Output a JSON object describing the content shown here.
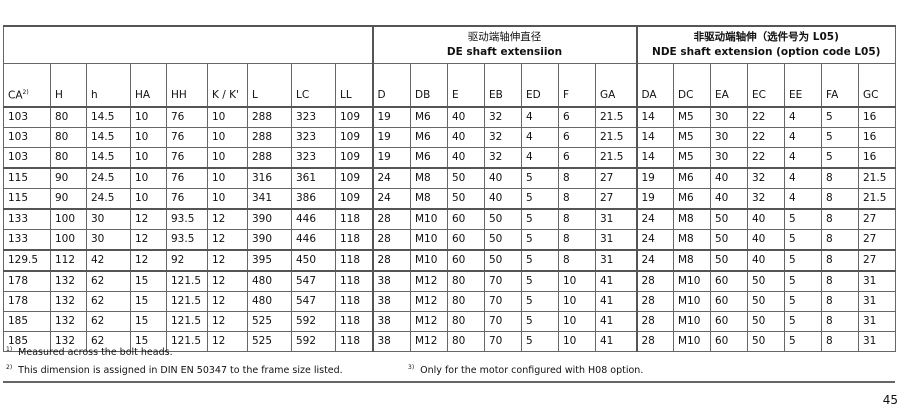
{
  "group_headers": {
    "de_zh": "驱动端轴伸直径",
    "de_en": "DE shaft extensiion",
    "nde_zh": "非驱动端轴伸（选件号为 L05)",
    "nde_en": "NDE shaft extension  (option code L05)"
  },
  "columns": [
    "CA",
    "H",
    "h",
    "HA",
    "HH",
    "K / K'",
    "L",
    "LC",
    "LL",
    "D",
    "DB",
    "E",
    "EB",
    "ED",
    "F",
    "GA",
    "DA",
    "DC",
    "EA",
    "EC",
    "EE",
    "FA",
    "GC"
  ],
  "ca_superscript": "2)",
  "row_groups": [
    [
      [
        "103",
        "80",
        "14.5",
        "10",
        "76",
        "10",
        "288",
        "323",
        "109",
        "19",
        "M6",
        "40",
        "32",
        "4",
        "6",
        "21.5",
        "14",
        "M5",
        "30",
        "22",
        "4",
        "5",
        "16"
      ],
      [
        "103",
        "80",
        "14.5",
        "10",
        "76",
        "10",
        "288",
        "323",
        "109",
        "19",
        "M6",
        "40",
        "32",
        "4",
        "6",
        "21.5",
        "14",
        "M5",
        "30",
        "22",
        "4",
        "5",
        "16"
      ],
      [
        "103",
        "80",
        "14.5",
        "10",
        "76",
        "10",
        "288",
        "323",
        "109",
        "19",
        "M6",
        "40",
        "32",
        "4",
        "6",
        "21.5",
        "14",
        "M5",
        "30",
        "22",
        "4",
        "5",
        "16"
      ]
    ],
    [
      [
        "115",
        "90",
        "24.5",
        "10",
        "76",
        "10",
        "316",
        "361",
        "109",
        "24",
        "M8",
        "50",
        "40",
        "5",
        "8",
        "27",
        "19",
        "M6",
        "40",
        "32",
        "4",
        "8",
        "21.5"
      ],
      [
        "115",
        "90",
        "24.5",
        "10",
        "76",
        "10",
        "341",
        "386",
        "109",
        "24",
        "M8",
        "50",
        "40",
        "5",
        "8",
        "27",
        "19",
        "M6",
        "40",
        "32",
        "4",
        "8",
        "21.5"
      ]
    ],
    [
      [
        "133",
        "100",
        "30",
        "12",
        "93.5",
        "12",
        "390",
        "446",
        "118",
        "28",
        "M10",
        "60",
        "50",
        "5",
        "8",
        "31",
        "24",
        "M8",
        "50",
        "40",
        "5",
        "8",
        "27"
      ],
      [
        "133",
        "100",
        "30",
        "12",
        "93.5",
        "12",
        "390",
        "446",
        "118",
        "28",
        "M10",
        "60",
        "50",
        "5",
        "8",
        "31",
        "24",
        "M8",
        "50",
        "40",
        "5",
        "8",
        "27"
      ]
    ],
    [
      [
        "129.5",
        "112",
        "42",
        "12",
        "92",
        "12",
        "395",
        "450",
        "118",
        "28",
        "M10",
        "60",
        "50",
        "5",
        "8",
        "31",
        "24",
        "M8",
        "50",
        "40",
        "5",
        "8",
        "27"
      ]
    ],
    [
      [
        "178",
        "132",
        "62",
        "15",
        "121.5",
        "12",
        "480",
        "547",
        "118",
        "38",
        "M12",
        "80",
        "70",
        "5",
        "10",
        "41",
        "28",
        "M10",
        "60",
        "50",
        "5",
        "8",
        "31"
      ],
      [
        "178",
        "132",
        "62",
        "15",
        "121.5",
        "12",
        "480",
        "547",
        "118",
        "38",
        "M12",
        "80",
        "70",
        "5",
        "10",
        "41",
        "28",
        "M10",
        "60",
        "50",
        "5",
        "8",
        "31"
      ],
      [
        "185",
        "132",
        "62",
        "15",
        "121.5",
        "12",
        "525",
        "592",
        "118",
        "38",
        "M12",
        "80",
        "70",
        "5",
        "10",
        "41",
        "28",
        "M10",
        "60",
        "50",
        "5",
        "8",
        "31"
      ],
      [
        "185",
        "132",
        "62",
        "15",
        "121.5",
        "12",
        "525",
        "592",
        "118",
        "38",
        "M12",
        "80",
        "70",
        "5",
        "10",
        "41",
        "28",
        "M10",
        "60",
        "50",
        "5",
        "8",
        "31"
      ]
    ]
  ],
  "footnotes": {
    "fn1_mark": "1)",
    "fn1": "Measured across the bolt heads.",
    "fn2_mark": "2)",
    "fn2": "This dimension is assigned in DIN EN 50347 to the frame size listed.",
    "fn3_mark": "3)",
    "fn3": "Only for the motor configured with H08 option."
  },
  "page_number": "45"
}
